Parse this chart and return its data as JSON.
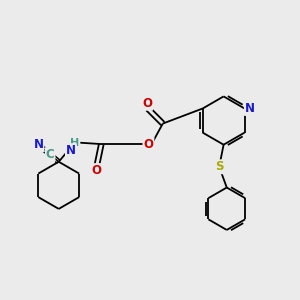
{
  "background_color": "#ebebeb",
  "atom_colors": {
    "C": "#4a9a8a",
    "N": "#1a1acc",
    "O": "#cc0000",
    "S": "#aaaa00",
    "H": "#4a9a8a"
  },
  "bond_color": "#000000",
  "font_size_atom": 8.5,
  "figsize": [
    3.0,
    3.0
  ],
  "dpi": 100
}
